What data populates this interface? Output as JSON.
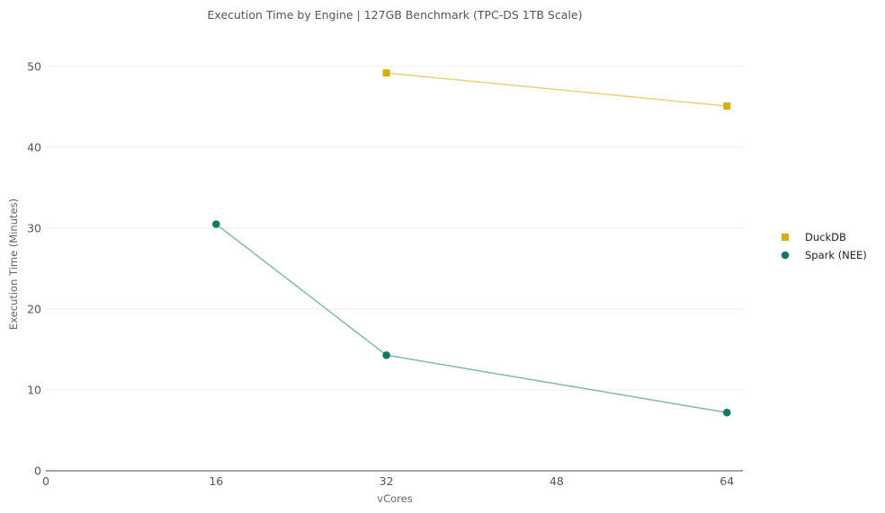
{
  "chart_data": {
    "type": "line",
    "title": "Execution Time by Engine | 127GB Benchmark (TPC-DS 1TB Scale)",
    "xlabel": "vCores",
    "ylabel": "Execution Time (Minutes)",
    "xlim": [
      0,
      65.5
    ],
    "ylim": [
      0,
      50
    ],
    "xticks": [
      0,
      16,
      32,
      48,
      64
    ],
    "yticks": [
      0,
      10,
      20,
      30,
      40,
      50
    ],
    "grid": "horizontal",
    "legend_position": "right",
    "series": [
      {
        "name": "DuckDB",
        "color": "#d4b106",
        "line_color": "#e8d680",
        "marker": "square",
        "points": [
          {
            "x": 32,
            "y": 49.2
          },
          {
            "x": 64,
            "y": 45.1
          }
        ]
      },
      {
        "name": "Spark (NEE)",
        "color": "#117a65",
        "line_color": "#88bcae",
        "marker": "circle",
        "points": [
          {
            "x": 16,
            "y": 30.5
          },
          {
            "x": 32,
            "y": 14.3
          },
          {
            "x": 64,
            "y": 7.2
          }
        ]
      }
    ]
  }
}
